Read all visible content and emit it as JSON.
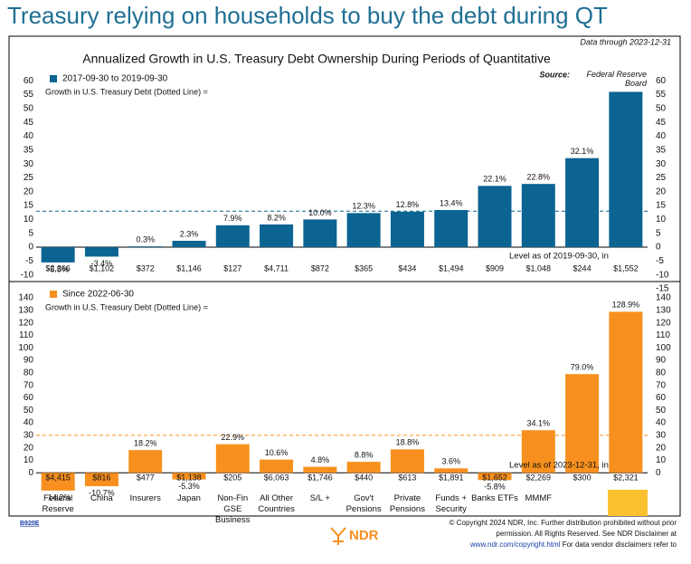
{
  "headline": "Treasury relying on households to buy the debt during QT",
  "chart_data": [
    {
      "type": "bar",
      "title": "Annualized Growth in U.S. Treasury Debt Ownership During Periods of Quantitative",
      "note": "Data through 2023-12-31",
      "source_label": "Source:",
      "source": "Federal Reserve Board",
      "series": [
        {
          "name": "2017-09-30 to 2019-09-30",
          "color": "#0b6491",
          "values": [
            -5.5,
            -3.4,
            0.3,
            2.3,
            7.9,
            8.2,
            10.0,
            12.3,
            12.8,
            13.4,
            22.1,
            22.8,
            32.1,
            56
          ],
          "value_labels": [
            "-5.5%",
            "-3.4%",
            "0.3%",
            "2.3%",
            "7.9%",
            "8.2%",
            "10.0%",
            "12.3%",
            "12.8%",
            "13.4%",
            "22.1%",
            "22.8%",
            "32.1%",
            null
          ]
        }
      ],
      "reference_line": {
        "label": "Growth in U.S. Treasury Debt (Dotted Line) =",
        "value": 13
      },
      "level_label": "Level as of 2019-09-30, in",
      "levels": [
        "$2,366",
        "$1,102",
        "$372",
        "$1,146",
        "$127",
        "$4,711",
        "$872",
        "$365",
        "$434",
        "$1,494",
        "$909",
        "$1,048",
        "$244",
        "$1,552"
      ],
      "ylim": [
        -15,
        63
      ],
      "yticks": [
        -10,
        -5,
        0,
        5,
        10,
        15,
        20,
        25,
        30,
        35,
        40,
        45,
        50,
        55,
        60
      ],
      "y2lim": [
        -15,
        63
      ],
      "y2ticks": [
        -15,
        -10,
        -5,
        0,
        5,
        10,
        15,
        20,
        25,
        30,
        35,
        40,
        45,
        50,
        55,
        60
      ]
    },
    {
      "type": "bar",
      "series": [
        {
          "name": "Since 2022-06-30",
          "color": "#f7901e",
          "values": [
            -14.2,
            -10.7,
            18.2,
            -5.3,
            22.9,
            10.6,
            4.8,
            8.8,
            18.8,
            3.6,
            -5.8,
            34.1,
            79.0,
            128.9
          ],
          "value_labels": [
            "-14.2%",
            "-10.7%",
            "18.2%",
            "-5.3%",
            "22.9%",
            "10.6%",
            "4.8%",
            "8.8%",
            "18.8%",
            "3.6%",
            "-5.8%",
            "34.1%",
            "79.0%",
            "128.9%"
          ]
        }
      ],
      "reference_line": {
        "label": "Growth in U.S. Treasury Debt (Dotted Line) =",
        "value": 30
      },
      "level_label": "Level as of 2023-12-31, in",
      "levels": [
        "$4,415",
        "$816",
        "$477",
        "$1,138",
        "$205",
        "$6,063",
        "$1,746",
        "$440",
        "$613",
        "$1,891",
        "$1,652",
        "$2,269",
        "$300",
        "$2,321"
      ],
      "categories": [
        "Federal Reserve",
        "China",
        "Insurers",
        "Japan",
        "Non-Fin GSE Business",
        "All Other Countries",
        "S/L +",
        "Gov't Pensions",
        "Private Pensions",
        "Funds + Security",
        "Banks ETFs",
        "MMMF",
        null,
        null
      ],
      "ylim": [
        -15,
        148
      ],
      "yticks": [
        0,
        10,
        20,
        30,
        40,
        50,
        60,
        70,
        80,
        90,
        100,
        110,
        120,
        130,
        140
      ],
      "y2lim": [
        -15,
        148
      ],
      "y2ticks": [
        0,
        10,
        20,
        30,
        40,
        50,
        60,
        70,
        80,
        90,
        100,
        110,
        120,
        130,
        140
      ]
    }
  ],
  "footer": {
    "code": "B920E",
    "logo": "NDR",
    "copyright": "© Copyright 2024 NDR, Inc. Further distribution prohibited without prior permission. All Rights Reserved. See NDR Disclaimer at",
    "url": "www.ndr.com/copyright.html",
    "vendor": "For data vendor disclaimers refer to"
  }
}
